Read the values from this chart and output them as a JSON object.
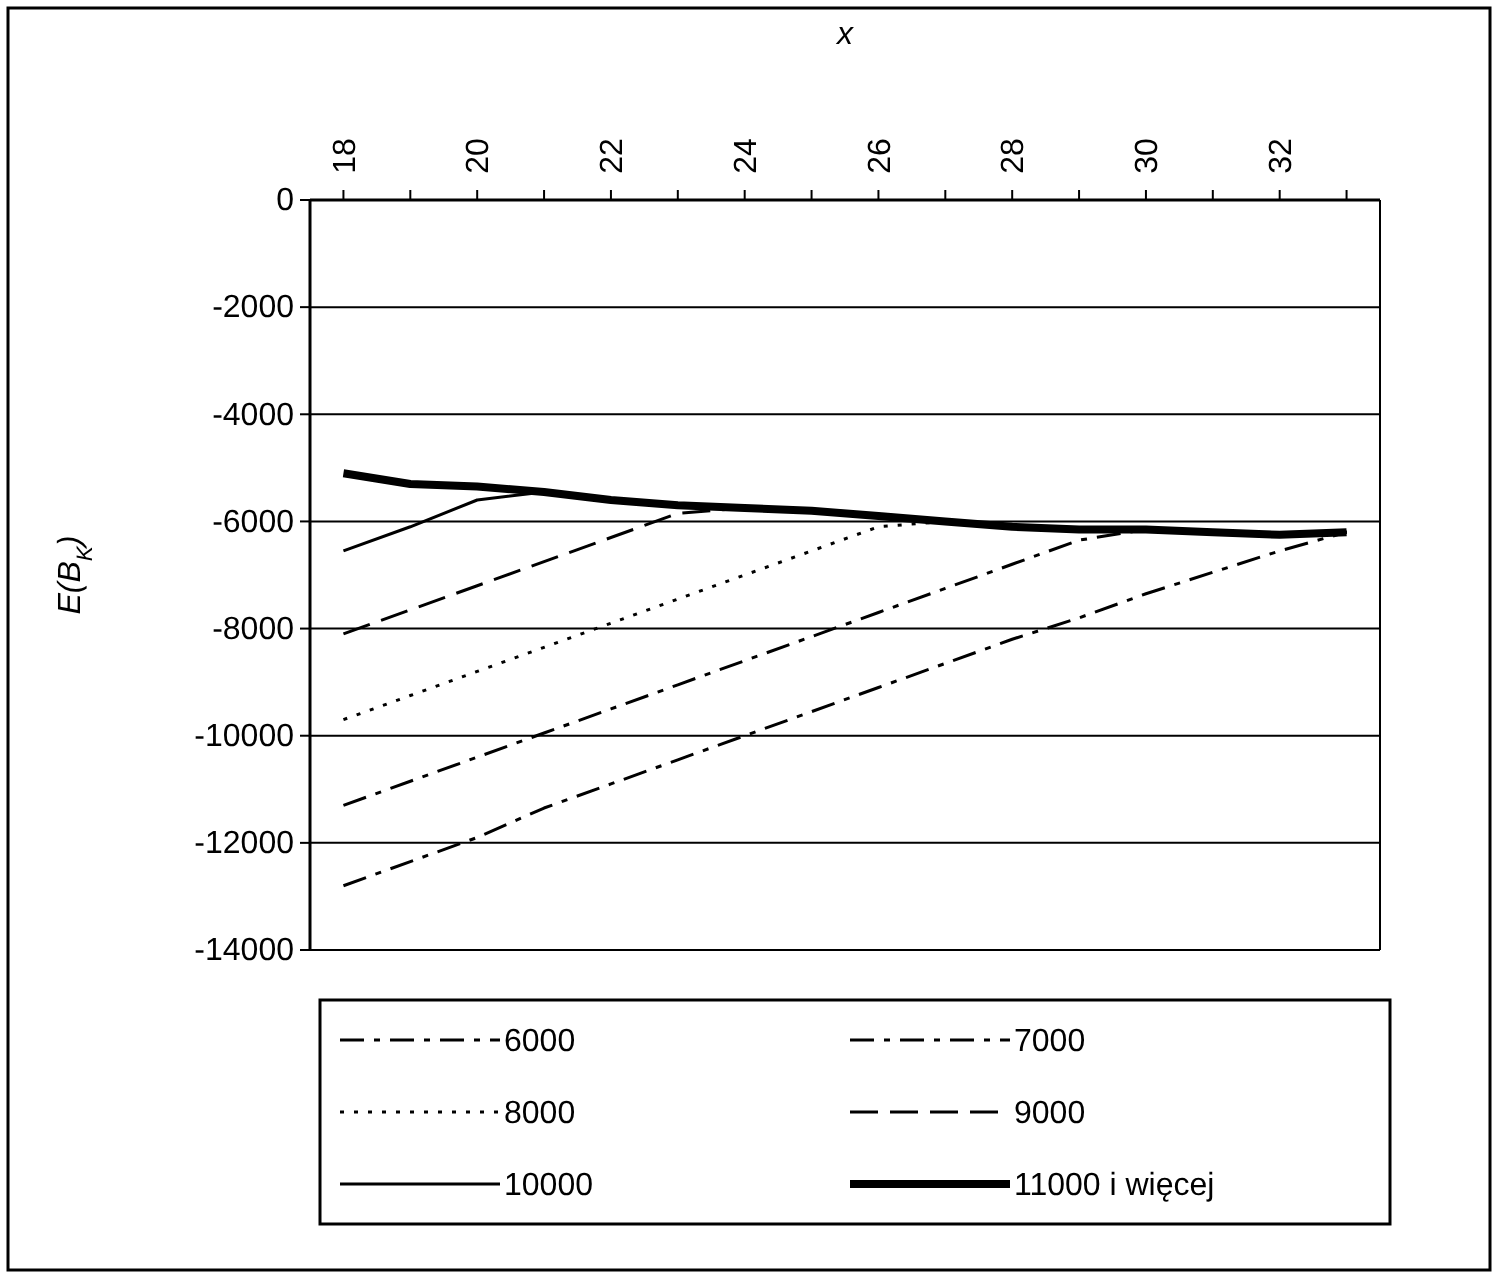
{
  "chart_data": {
    "type": "line",
    "xlabel": "x",
    "ylabel": "E(B$_{K}$)",
    "x": [
      18,
      19,
      20,
      21,
      22,
      23,
      24,
      25,
      26,
      27,
      28,
      29,
      30,
      31,
      32,
      33
    ],
    "xlim": [
      17.5,
      33.5
    ],
    "xticks": [
      18,
      {
        "value": 19,
        "label": null
      },
      20,
      {
        "value": 21,
        "label": null
      },
      22,
      {
        "value": 23,
        "label": null
      },
      24,
      {
        "value": 25,
        "label": null
      },
      26,
      {
        "value": 27,
        "label": null
      },
      28,
      {
        "value": 29,
        "label": null
      },
      30,
      {
        "value": 31,
        "label": null
      },
      32,
      {
        "value": 33,
        "label": null
      }
    ],
    "ylim": [
      -14000,
      0
    ],
    "yticks": [
      0,
      -2000,
      -4000,
      -6000,
      -8000,
      -10000,
      -12000,
      -14000
    ],
    "grid": "y",
    "legend": "bottom",
    "series": [
      {
        "name": "6000",
        "color": "#000000",
        "line_style": "dashdot",
        "values": [
          -12800,
          -12350,
          -11900,
          -11350,
          -10900,
          -10450,
          -10000,
          -9550,
          -9100,
          -8650,
          -8200,
          -7800,
          -7350,
          -6950,
          -6550,
          -6200
        ]
      },
      {
        "name": "7000",
        "color": "#000000",
        "line_style": "dashdot",
        "values": [
          -11300,
          -10850,
          -10400,
          -9950,
          -9500,
          -9050,
          -8600,
          -8150,
          -7700,
          -7250,
          -6800,
          -6350,
          -6150,
          -6200,
          -6250,
          -6200
        ]
      },
      {
        "name": "8000",
        "color": "#000000",
        "line_style": "dotted",
        "values": [
          -9700,
          -9250,
          -8800,
          -8350,
          -7900,
          -7450,
          -7000,
          -6550,
          -6100,
          -6000,
          -6100,
          -6150,
          -6150,
          -6200,
          -6250,
          -6200
        ]
      },
      {
        "name": "9000",
        "color": "#000000",
        "line_style": "dashed",
        "values": [
          -8100,
          -7650,
          -7200,
          -6750,
          -6300,
          -5850,
          -5750,
          -5800,
          -5900,
          -6000,
          -6100,
          -6150,
          -6150,
          -6200,
          -6250,
          -6200
        ]
      },
      {
        "name": "10000",
        "color": "#000000",
        "line_style": "solid",
        "values": [
          -6550,
          -6100,
          -5600,
          -5450,
          -5600,
          -5700,
          -5750,
          -5800,
          -5900,
          -6000,
          -6100,
          -6150,
          -6150,
          -6200,
          -6250,
          -6200
        ]
      },
      {
        "name": "11000 i więcej",
        "color": "#000000",
        "line_style": "solid",
        "values": [
          -5100,
          -5300,
          -5350,
          -5450,
          -5600,
          -5700,
          -5750,
          -5800,
          -5900,
          -6000,
          -6100,
          -6150,
          -6150,
          -6200,
          -6250,
          -6200
        ]
      }
    ]
  }
}
